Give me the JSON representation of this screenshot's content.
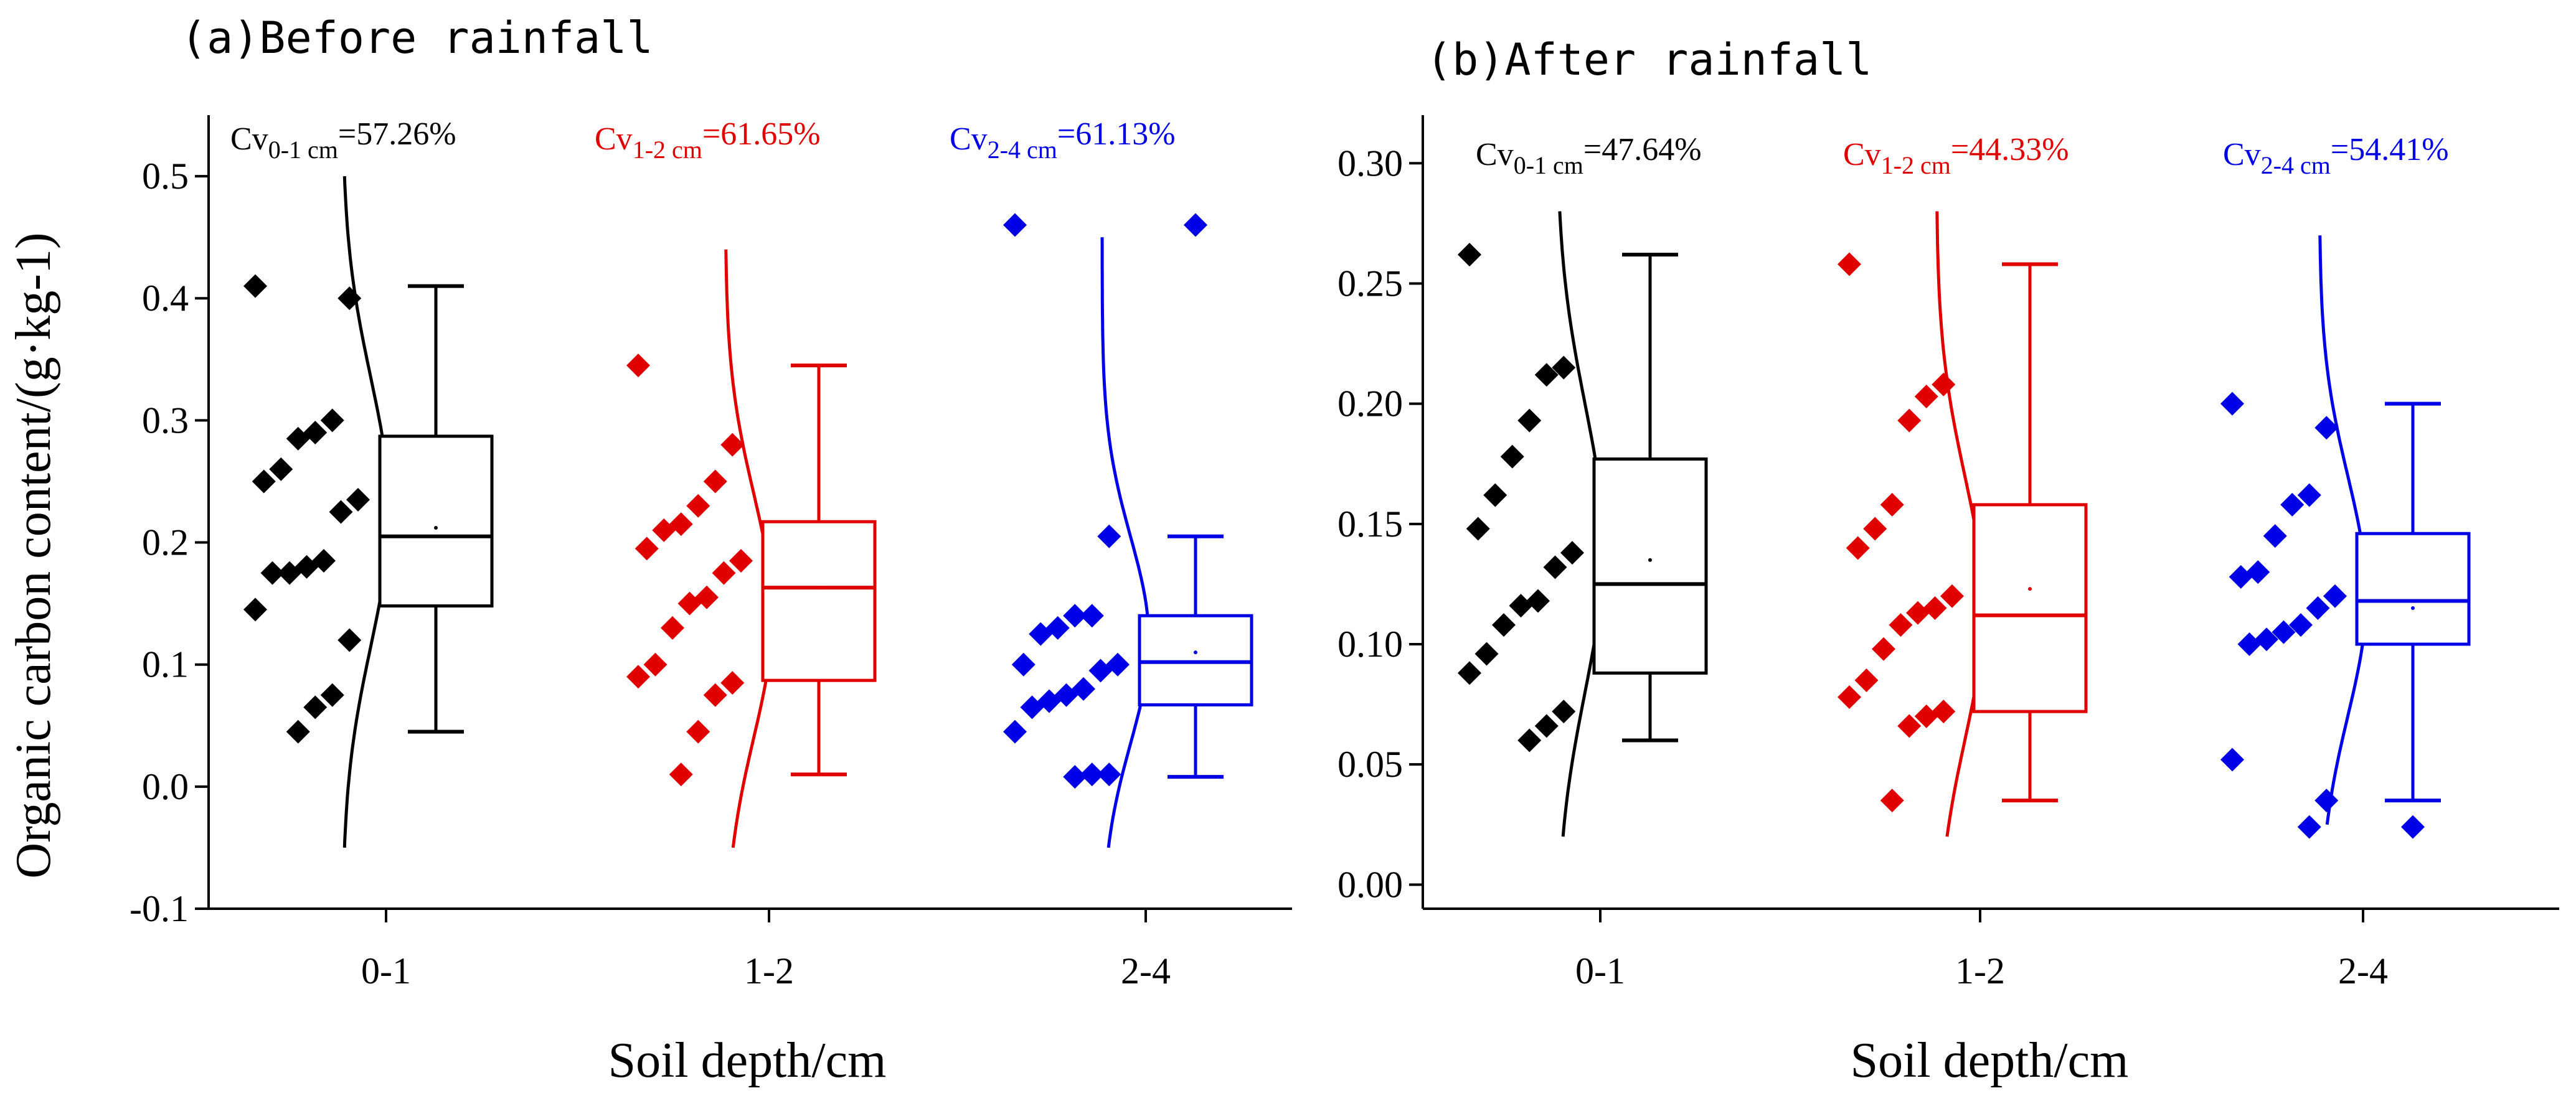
{
  "chart_data": [
    {
      "type": "box",
      "title": "(a)Before rainfall",
      "xlabel": "Soil depth/cm",
      "ylabel": "Organic carbon content/(g·kg-1)",
      "ylim": [
        -0.1,
        0.55
      ],
      "yticks": [
        "0.5",
        "0.4",
        "0.3",
        "0.2",
        "0.1",
        "0.0",
        "-0.1"
      ],
      "categories": [
        "0-1",
        "1-2",
        "2-4"
      ],
      "cv_labels": [
        {
          "prefix": "Cv",
          "sub": "0-1 cm",
          "value": "=57.26%",
          "color": "#000000"
        },
        {
          "prefix": "Cv",
          "sub": "1-2 cm",
          "value": "=61.65%",
          "color": "#e00000"
        },
        {
          "prefix": "Cv",
          "sub": "2-4 cm",
          "value": "=61.13%",
          "color": "#0000e6"
        }
      ],
      "series": [
        {
          "category": "0-1",
          "color": "#000000",
          "points": [
            0.41,
            0.4,
            0.3,
            0.29,
            0.285,
            0.26,
            0.25,
            0.235,
            0.225,
            0.185,
            0.18,
            0.175,
            0.175,
            0.145,
            0.12,
            0.075,
            0.065,
            0.045
          ],
          "box": {
            "min": 0.045,
            "q1": 0.148,
            "median": 0.205,
            "q3": 0.287,
            "max": 0.41,
            "mean": 0.212
          },
          "curve": {
            "mean": 0.225,
            "sd": 0.11,
            "ymin": -0.05,
            "ymax": 0.5
          }
        },
        {
          "category": "1-2",
          "color": "#e00000",
          "points": [
            0.345,
            0.28,
            0.25,
            0.23,
            0.215,
            0.21,
            0.195,
            0.185,
            0.175,
            0.155,
            0.15,
            0.13,
            0.1,
            0.09,
            0.085,
            0.075,
            0.045,
            0.01
          ],
          "box": {
            "min": 0.01,
            "q1": 0.087,
            "median": 0.163,
            "q3": 0.217,
            "max": 0.345,
            "mean": 0.163
          },
          "curve": {
            "mean": 0.14,
            "sd": 0.1,
            "ymin": -0.05,
            "ymax": 0.44
          }
        },
        {
          "category": "2-4",
          "color": "#0000e6",
          "points": [
            0.46,
            0.205,
            0.14,
            0.14,
            0.13,
            0.125,
            0.1,
            0.1,
            0.095,
            0.08,
            0.075,
            0.07,
            0.065,
            0.045,
            0.01,
            0.01,
            0.008
          ],
          "box": {
            "min": 0.008,
            "q1": 0.067,
            "median": 0.102,
            "q3": 0.14,
            "max": 0.205,
            "mean": 0.11
          },
          "outlier": 0.46,
          "curve": {
            "mean": 0.12,
            "sd": 0.085,
            "ymin": -0.05,
            "ymax": 0.45
          }
        }
      ]
    },
    {
      "type": "box",
      "title": "(b)After rainfall",
      "xlabel": "Soil depth/cm",
      "ylabel": "",
      "ylim": [
        -0.01,
        0.32
      ],
      "yticks": [
        "0.30",
        "0.25",
        "0.20",
        "0.15",
        "0.10",
        "0.05",
        "0.00"
      ],
      "categories": [
        "0-1",
        "1-2",
        "2-4"
      ],
      "cv_labels": [
        {
          "prefix": "Cv",
          "sub": "0-1 cm",
          "value": "=47.64%",
          "color": "#000000"
        },
        {
          "prefix": "Cv",
          "sub": "1-2 cm",
          "value": "=44.33%",
          "color": "#e00000"
        },
        {
          "prefix": "Cv",
          "sub": "2-4 cm",
          "value": "=54.41%",
          "color": "#0000e6"
        }
      ],
      "series": [
        {
          "category": "0-1",
          "color": "#000000",
          "points": [
            0.262,
            0.215,
            0.212,
            0.193,
            0.178,
            0.162,
            0.148,
            0.138,
            0.132,
            0.118,
            0.116,
            0.108,
            0.096,
            0.088,
            0.072,
            0.066,
            0.06
          ],
          "box": {
            "min": 0.06,
            "q1": 0.088,
            "median": 0.125,
            "q3": 0.177,
            "max": 0.262,
            "mean": 0.135
          },
          "curve": {
            "mean": 0.14,
            "sd": 0.06,
            "ymin": 0.02,
            "ymax": 0.28
          }
        },
        {
          "category": "1-2",
          "color": "#e00000",
          "points": [
            0.258,
            0.208,
            0.203,
            0.193,
            0.158,
            0.148,
            0.14,
            0.12,
            0.115,
            0.113,
            0.108,
            0.098,
            0.085,
            0.078,
            0.072,
            0.07,
            0.066,
            0.035
          ],
          "box": {
            "min": 0.035,
            "q1": 0.072,
            "median": 0.112,
            "q3": 0.158,
            "max": 0.258,
            "mean": 0.123
          },
          "curve": {
            "mean": 0.115,
            "sd": 0.055,
            "ymin": 0.02,
            "ymax": 0.28
          }
        },
        {
          "category": "2-4",
          "color": "#0000e6",
          "points": [
            0.2,
            0.19,
            0.162,
            0.158,
            0.145,
            0.13,
            0.128,
            0.12,
            0.115,
            0.108,
            0.105,
            0.102,
            0.1,
            0.052,
            0.035,
            0.024
          ],
          "box": {
            "min": 0.035,
            "q1": 0.1,
            "median": 0.118,
            "q3": 0.146,
            "max": 0.2,
            "mean": 0.115
          },
          "outlier": 0.024,
          "curve": {
            "mean": 0.12,
            "sd": 0.05,
            "ymin": 0.025,
            "ymax": 0.27
          }
        }
      ]
    }
  ]
}
